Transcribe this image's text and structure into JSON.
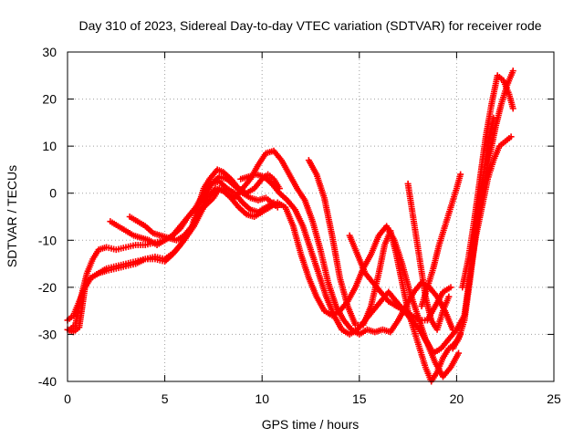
{
  "chart_data": {
    "type": "line",
    "title": "Day 310 of 2023, Sidereal Day-to-day VTEC variation (SDTVAR) for receiver rode",
    "xlabel": "GPS time / hours",
    "ylabel": "SDTVAR / TECUs",
    "xlim": [
      0,
      25
    ],
    "ylim": [
      -40,
      30
    ],
    "xticks": [
      0,
      5,
      10,
      15,
      20,
      25
    ],
    "yticks": [
      -40,
      -30,
      -20,
      -10,
      0,
      10,
      20,
      30
    ],
    "grid": true,
    "legend": "none",
    "marker": "plus",
    "color": "#ff0000",
    "series": [
      {
        "x": [
          0.0,
          0.3,
          0.6,
          0.9,
          1.2,
          1.6,
          2.0,
          2.5,
          3.0,
          3.5,
          4.0,
          4.5,
          5.0,
          5.4,
          5.8,
          6.1,
          6.4,
          6.7,
          7.0,
          7.3,
          7.7,
          8.0,
          8.4,
          8.8,
          9.2,
          9.6,
          10.0,
          10.3,
          10.6,
          10.9
        ],
        "y": [
          -27,
          -26,
          -23,
          -20,
          -18,
          -17,
          -16,
          -15.5,
          -15,
          -14.5,
          -14,
          -14,
          -14.5,
          -13,
          -11,
          -9,
          -7,
          -3,
          1,
          3,
          5,
          4.5,
          3,
          1,
          0,
          1,
          3,
          4,
          3,
          1
        ]
      },
      {
        "x": [
          0.1,
          0.4,
          0.7,
          1.0,
          1.3,
          1.6,
          2.0,
          2.5,
          3.0,
          3.5,
          4.0,
          4.5,
          5.0,
          5.4,
          5.8,
          6.2,
          6.6,
          7.0,
          7.4,
          7.8,
          8.2,
          8.6,
          9.0,
          9.4,
          9.8,
          10.2,
          10.5,
          10.8
        ],
        "y": [
          -29,
          -28,
          -22,
          -17,
          -14,
          -12,
          -11.5,
          -12,
          -11.5,
          -11,
          -11,
          -10.5,
          -10,
          -9,
          -7.5,
          -5,
          -3,
          -1,
          2,
          3.5,
          3,
          1.5,
          0,
          -1,
          -1.5,
          -1,
          -2,
          -3
        ]
      },
      {
        "x": [
          0.0,
          0.3,
          0.6,
          0.9,
          1.2,
          1.6,
          2.0,
          2.5,
          3.0,
          3.5,
          4.0,
          4.5,
          5.0,
          5.5,
          6.0,
          6.5,
          7.0,
          7.5,
          7.8,
          8.2,
          8.6,
          9.0,
          9.4,
          9.8,
          10.2,
          10.6,
          11.0,
          11.4,
          11.8,
          12.2,
          12.6,
          13.0,
          13.4,
          13.8,
          14.2,
          14.6,
          15.0,
          15.4,
          15.8,
          16.2,
          16.6,
          17.0,
          17.4,
          17.8,
          18.2,
          18.6,
          19.0,
          19.4,
          19.8
        ],
        "y": [
          -29,
          -29.5,
          -28.5,
          -20,
          -18,
          -17,
          -16.5,
          -16,
          -15.5,
          -15,
          -14,
          -13.5,
          -14,
          -12.5,
          -10,
          -7,
          -3,
          -1,
          1,
          0,
          -1,
          1,
          3,
          6,
          8.5,
          9,
          7,
          4,
          1,
          -1.5,
          -6,
          -12,
          -19,
          -24,
          -27,
          -29,
          -30,
          -29,
          -29.5,
          -29,
          -29.5,
          -27,
          -24,
          -21,
          -19,
          -20,
          -22,
          -25,
          -29
        ]
      },
      {
        "x": [
          2.2,
          2.6,
          3.0,
          3.4,
          3.8,
          4.2,
          4.6,
          5.0,
          5.4,
          5.8,
          6.2,
          6.6,
          7.0,
          7.4,
          7.8,
          8.2,
          8.6,
          9.0,
          9.4,
          9.8,
          10.2,
          10.6
        ],
        "y": [
          -6,
          -7,
          -8,
          -9,
          -9.5,
          -10,
          -11,
          -10,
          -9,
          -7,
          -5,
          -3,
          0,
          2,
          2.5,
          1,
          0,
          -2,
          -3.5,
          -4,
          -3,
          -2
        ]
      },
      {
        "x": [
          3.2,
          3.6,
          4.0,
          4.4,
          4.8,
          5.2,
          5.6,
          6.0,
          6.4,
          6.8,
          7.2,
          7.6,
          8.0,
          8.4,
          8.8,
          9.2,
          9.6,
          10.0,
          10.4,
          10.8,
          11.2,
          11.6,
          12.0,
          12.4,
          12.8,
          13.2,
          13.6,
          14.0,
          14.4,
          14.8,
          15.2,
          15.6,
          16.0,
          16.4,
          16.8,
          17.2,
          17.6,
          18.0,
          18.4,
          18.8,
          19.2,
          19.6,
          20.0,
          20.4
        ],
        "y": [
          -5,
          -6,
          -7,
          -8.5,
          -9,
          -9.5,
          -10,
          -9,
          -7,
          -4,
          -1,
          1,
          0.5,
          -1,
          -3,
          -4.5,
          -5,
          -4,
          -3,
          -2,
          -3,
          -7,
          -13,
          -18,
          -22,
          -25,
          -26,
          -25,
          -23,
          -20,
          -16,
          -13,
          -9,
          -7,
          -10,
          -15,
          -21,
          -26,
          -31,
          -34,
          -33,
          -31,
          -29,
          -26
        ]
      },
      {
        "x": [
          8.9,
          9.3,
          9.7,
          10.1,
          10.5,
          10.9,
          11.3,
          11.7,
          12.1,
          12.5,
          12.9,
          13.3,
          13.7,
          14.1,
          14.5,
          14.9,
          15.3,
          15.7,
          16.1,
          16.5,
          16.9,
          17.3,
          17.7,
          18.1,
          18.5,
          18.9,
          19.3,
          19.7,
          20.1
        ],
        "y": [
          3,
          3.5,
          4,
          3.5,
          2,
          0,
          -1.5,
          -3.5,
          -7,
          -12,
          -17,
          -22,
          -26,
          -29,
          -30,
          -29,
          -27,
          -25,
          -23,
          -21,
          -23,
          -25,
          -27,
          -29,
          -32,
          -36,
          -39,
          -37,
          -34
        ]
      },
      {
        "x": [
          12.4,
          12.8,
          13.2,
          13.6,
          14.0,
          14.4,
          14.8,
          15.2,
          15.6,
          16.0,
          16.3,
          16.6,
          16.9,
          17.2,
          17.5,
          17.8,
          18.1,
          18.4,
          18.7,
          19.0,
          19.3,
          19.6,
          19.9,
          20.2
        ],
        "y": [
          7,
          4,
          -1,
          -9,
          -18,
          -24,
          -28,
          -28,
          -24,
          -17,
          -11,
          -8,
          -13,
          -19,
          -25,
          -29,
          -33,
          -37,
          -40,
          -38,
          -35,
          -33,
          -32,
          -30
        ]
      },
      {
        "x": [
          14.5,
          14.9,
          15.3,
          15.7,
          16.1,
          16.5,
          16.9,
          17.3,
          17.7,
          18.1,
          18.5,
          18.9,
          19.3,
          19.7
        ],
        "y": [
          -9,
          -13,
          -17,
          -19,
          -21,
          -23,
          -24,
          -25,
          -26,
          -27,
          -27,
          -24,
          -21,
          -20
        ]
      },
      {
        "x": [
          17.5,
          17.8,
          18.1,
          18.4,
          18.7,
          19.0,
          19.3,
          19.6
        ],
        "y": [
          2,
          -6,
          -14,
          -22,
          -27,
          -29,
          -25,
          -22
        ]
      },
      {
        "x": [
          18.2,
          18.5,
          18.8,
          19.1,
          19.4,
          19.7,
          20.0,
          20.2
        ],
        "y": [
          -24,
          -20,
          -16,
          -11,
          -7,
          -3,
          1,
          4
        ]
      },
      {
        "x": [
          20.4,
          20.7,
          21.0,
          21.3,
          21.6,
          21.9,
          22.2,
          22.5,
          22.8
        ],
        "y": [
          -26,
          -17,
          -9,
          -3,
          3,
          7,
          10,
          11,
          12
        ]
      },
      {
        "x": [
          20.3,
          20.6,
          20.9,
          21.2,
          21.5,
          21.8,
          22.1,
          22.4,
          22.7,
          22.9
        ],
        "y": [
          -20,
          -14,
          -6,
          3,
          12,
          19,
          25,
          24,
          21,
          18
        ]
      },
      {
        "x": [
          20.8,
          21.1,
          21.4,
          21.7,
          22.0,
          22.3,
          22.6,
          22.9
        ],
        "y": [
          -12,
          -5,
          2,
          8,
          14,
          19,
          23,
          26
        ]
      },
      {
        "x": [
          19.8,
          20.1,
          20.4,
          20.7,
          21.0,
          21.3,
          21.6,
          21.9
        ],
        "y": [
          -33,
          -31,
          -27,
          -18,
          -8,
          2,
          10,
          16
        ]
      }
    ]
  }
}
